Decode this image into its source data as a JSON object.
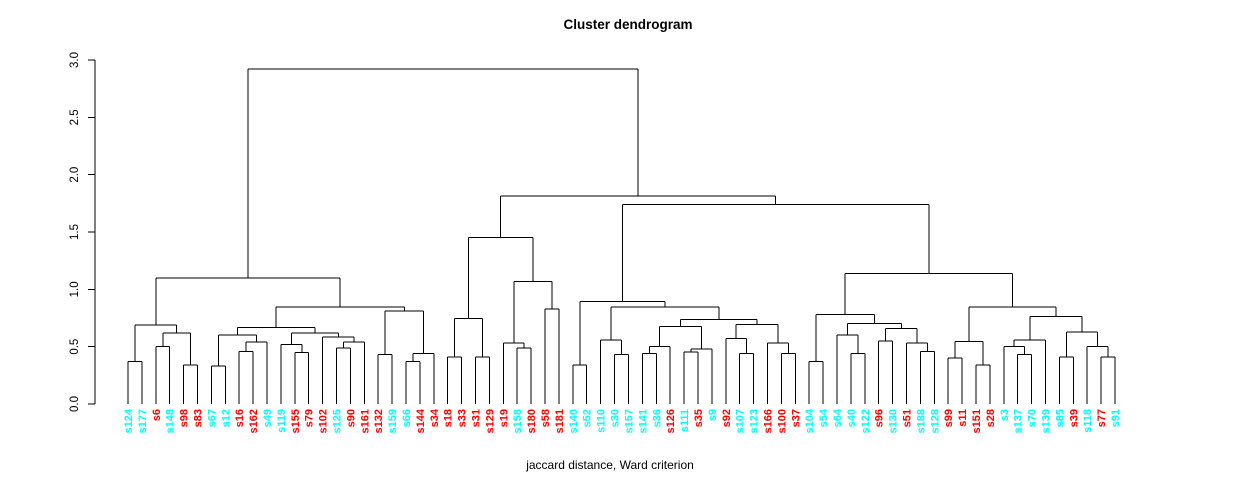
{
  "chart_data": {
    "type": "dendrogram",
    "title": "Cluster dendrogram",
    "xlabel": "jaccard distance, Ward criterion",
    "ylabel": "",
    "ylim": [
      0.0,
      3.0
    ],
    "yticks": [
      "0.0",
      "0.5",
      "1.0",
      "1.5",
      "2.0",
      "2.5",
      "3.0"
    ],
    "grid": false,
    "line_color": "#000000",
    "label_colors": {
      "red": "#FF0000",
      "cyan": "#00FFFF"
    },
    "leaves": [
      {
        "label": "s124",
        "color": "cyan"
      },
      {
        "label": "s177",
        "color": "cyan"
      },
      {
        "label": "s6",
        "color": "red"
      },
      {
        "label": "s148",
        "color": "cyan"
      },
      {
        "label": "s98",
        "color": "red"
      },
      {
        "label": "s83",
        "color": "red"
      },
      {
        "label": "s67",
        "color": "cyan"
      },
      {
        "label": "s12",
        "color": "cyan"
      },
      {
        "label": "s16",
        "color": "red"
      },
      {
        "label": "s162",
        "color": "red"
      },
      {
        "label": "s49",
        "color": "cyan"
      },
      {
        "label": "s119",
        "color": "cyan"
      },
      {
        "label": "s155",
        "color": "red"
      },
      {
        "label": "s79",
        "color": "red"
      },
      {
        "label": "s102",
        "color": "red"
      },
      {
        "label": "s125",
        "color": "cyan"
      },
      {
        "label": "s90",
        "color": "red"
      },
      {
        "label": "s161",
        "color": "red"
      },
      {
        "label": "s132",
        "color": "red"
      },
      {
        "label": "s159",
        "color": "cyan"
      },
      {
        "label": "s66",
        "color": "cyan"
      },
      {
        "label": "s144",
        "color": "red"
      },
      {
        "label": "s34",
        "color": "red"
      },
      {
        "label": "s18",
        "color": "red"
      },
      {
        "label": "s33",
        "color": "red"
      },
      {
        "label": "s31",
        "color": "red"
      },
      {
        "label": "s129",
        "color": "red"
      },
      {
        "label": "s19",
        "color": "red"
      },
      {
        "label": "s158",
        "color": "cyan"
      },
      {
        "label": "s180",
        "color": "red"
      },
      {
        "label": "s58",
        "color": "red"
      },
      {
        "label": "s181",
        "color": "red"
      },
      {
        "label": "s140",
        "color": "cyan"
      },
      {
        "label": "s52",
        "color": "cyan"
      },
      {
        "label": "s110",
        "color": "cyan"
      },
      {
        "label": "s30",
        "color": "cyan"
      },
      {
        "label": "s157",
        "color": "cyan"
      },
      {
        "label": "s141",
        "color": "cyan"
      },
      {
        "label": "s36",
        "color": "cyan"
      },
      {
        "label": "s126",
        "color": "red"
      },
      {
        "label": "s111",
        "color": "cyan"
      },
      {
        "label": "s35",
        "color": "red"
      },
      {
        "label": "s9",
        "color": "cyan"
      },
      {
        "label": "s92",
        "color": "red"
      },
      {
        "label": "s107",
        "color": "cyan"
      },
      {
        "label": "s123",
        "color": "cyan"
      },
      {
        "label": "s166",
        "color": "red"
      },
      {
        "label": "s100",
        "color": "red"
      },
      {
        "label": "s37",
        "color": "red"
      },
      {
        "label": "s104",
        "color": "cyan"
      },
      {
        "label": "s54",
        "color": "cyan"
      },
      {
        "label": "s64",
        "color": "cyan"
      },
      {
        "label": "s40",
        "color": "cyan"
      },
      {
        "label": "s122",
        "color": "cyan"
      },
      {
        "label": "s96",
        "color": "red"
      },
      {
        "label": "s130",
        "color": "cyan"
      },
      {
        "label": "s51",
        "color": "red"
      },
      {
        "label": "s188",
        "color": "cyan"
      },
      {
        "label": "s128",
        "color": "cyan"
      },
      {
        "label": "s99",
        "color": "red"
      },
      {
        "label": "s11",
        "color": "red"
      },
      {
        "label": "s151",
        "color": "red"
      },
      {
        "label": "s28",
        "color": "red"
      },
      {
        "label": "s3",
        "color": "cyan"
      },
      {
        "label": "s137",
        "color": "cyan"
      },
      {
        "label": "s70",
        "color": "cyan"
      },
      {
        "label": "s139",
        "color": "cyan"
      },
      {
        "label": "s85",
        "color": "cyan"
      },
      {
        "label": "s39",
        "color": "red"
      },
      {
        "label": "s118",
        "color": "cyan"
      },
      {
        "label": "s77",
        "color": "red"
      },
      {
        "label": "s91",
        "color": "cyan"
      }
    ],
    "tree": {
      "h": 2.92,
      "c": [
        {
          "h": 1.1,
          "c": [
            {
              "h": 0.69,
              "c": [
                {
                  "h": 0.37,
                  "c": [
                    0,
                    1
                  ]
                },
                {
                  "h": 0.62,
                  "c": [
                    {
                      "h": 0.5,
                      "c": [
                        2,
                        3
                      ]
                    },
                    {
                      "h": 0.34,
                      "c": [
                        4,
                        5
                      ]
                    }
                  ]
                }
              ]
            },
            {
              "h": 0.845,
              "c": [
                {
                  "h": 0.665,
                  "c": [
                    {
                      "h": 0.6,
                      "c": [
                        {
                          "h": 0.33,
                          "c": [
                            6,
                            7
                          ]
                        },
                        {
                          "h": 0.54,
                          "c": [
                            {
                              "h": 0.46,
                              "c": [
                                8,
                                9
                              ]
                            },
                            10
                          ]
                        }
                      ]
                    },
                    {
                      "h": 0.62,
                      "c": [
                        {
                          "h": 0.52,
                          "c": [
                            11,
                            {
                              "h": 0.45,
                              "c": [
                                12,
                                13
                              ]
                            }
                          ]
                        },
                        {
                          "h": 0.585,
                          "c": [
                            14,
                            {
                              "h": 0.54,
                              "c": [
                                {
                                  "h": 0.49,
                                  "c": [
                                    15,
                                    16
                                  ]
                                },
                                17
                              ]
                            }
                          ]
                        }
                      ]
                    }
                  ]
                },
                {
                  "h": 0.81,
                  "c": [
                    {
                      "h": 0.43,
                      "c": [
                        18,
                        19
                      ]
                    },
                    {
                      "h": 0.44,
                      "c": [
                        {
                          "h": 0.37,
                          "c": [
                            20,
                            21
                          ]
                        },
                        22
                      ]
                    }
                  ]
                }
              ]
            }
          ]
        },
        {
          "h": 1.815,
          "c": [
            {
              "h": 1.45,
              "c": [
                {
                  "h": 0.747,
                  "c": [
                    {
                      "h": 0.41,
                      "c": [
                        23,
                        24
                      ]
                    },
                    {
                      "h": 0.41,
                      "c": [
                        25,
                        26
                      ]
                    }
                  ]
                },
                {
                  "h": 1.07,
                  "c": [
                    {
                      "h": 0.53,
                      "c": [
                        27,
                        {
                          "h": 0.49,
                          "c": [
                            28,
                            29
                          ]
                        }
                      ]
                    },
                    {
                      "h": 0.83,
                      "c": [
                        30,
                        31
                      ]
                    }
                  ]
                }
              ]
            },
            {
              "h": 1.74,
              "c": [
                {
                  "h": 0.892,
                  "c": [
                    {
                      "h": 0.34,
                      "c": [
                        32,
                        33
                      ]
                    },
                    {
                      "h": 0.848,
                      "c": [
                        {
                          "h": 0.56,
                          "c": [
                            34,
                            {
                              "h": 0.43,
                              "c": [
                                35,
                                36
                              ]
                            }
                          ]
                        },
                        {
                          "h": 0.738,
                          "c": [
                            {
                              "h": 0.674,
                              "c": [
                                {
                                  "h": 0.5,
                                  "c": [
                                    {
                                      "h": 0.44,
                                      "c": [
                                        37,
                                        38
                                      ]
                                    },
                                    39
                                  ]
                                },
                                {
                                  "h": 0.48,
                                  "c": [
                                    {
                                      "h": 0.455,
                                      "c": [
                                        40,
                                        41
                                      ]
                                    },
                                    42
                                  ]
                                }
                              ]
                            },
                            {
                              "h": 0.695,
                              "c": [
                                {
                                  "h": 0.573,
                                  "c": [
                                    43,
                                    {
                                      "h": 0.44,
                                      "c": [
                                        44,
                                        45
                                      ]
                                    }
                                  ]
                                },
                                {
                                  "h": 0.53,
                                  "c": [
                                    46,
                                    {
                                      "h": 0.44,
                                      "c": [
                                        47,
                                        48
                                      ]
                                    }
                                  ]
                                }
                              ]
                            }
                          ]
                        }
                      ]
                    }
                  ]
                },
                {
                  "h": 1.14,
                  "c": [
                    {
                      "h": 0.782,
                      "c": [
                        {
                          "h": 0.37,
                          "c": [
                            49,
                            50
                          ]
                        },
                        {
                          "h": 0.7,
                          "c": [
                            {
                              "h": 0.6,
                              "c": [
                                51,
                                {
                                  "h": 0.44,
                                  "c": [
                                    52,
                                    53
                                  ]
                                }
                              ]
                            },
                            {
                              "h": 0.66,
                              "c": [
                                {
                                  "h": 0.55,
                                  "c": [
                                    54,
                                    55
                                  ]
                                },
                                {
                                  "h": 0.53,
                                  "c": [
                                    56,
                                    {
                                      "h": 0.46,
                                      "c": [
                                        57,
                                        58
                                      ]
                                    }
                                  ]
                                }
                              ]
                            }
                          ]
                        }
                      ]
                    },
                    {
                      "h": 0.848,
                      "c": [
                        {
                          "h": 0.543,
                          "c": [
                            {
                              "h": 0.4,
                              "c": [
                                59,
                                60
                              ]
                            },
                            {
                              "h": 0.34,
                              "c": [
                                61,
                                62
                              ]
                            }
                          ]
                        },
                        {
                          "h": 0.761,
                          "c": [
                            {
                              "h": 0.56,
                              "c": [
                                {
                                  "h": 0.5,
                                  "c": [
                                    63,
                                    {
                                      "h": 0.43,
                                      "c": [
                                        64,
                                        65
                                      ]
                                    }
                                  ]
                                },
                                66
                              ]
                            },
                            {
                              "h": 0.63,
                              "c": [
                                {
                                  "h": 0.41,
                                  "c": [
                                    67,
                                    68
                                  ]
                                },
                                {
                                  "h": 0.5,
                                  "c": [
                                    69,
                                    {
                                      "h": 0.41,
                                      "c": [
                                        70,
                                        71
                                      ]
                                    }
                                  ]
                                }
                              ]
                            }
                          ]
                        }
                      ]
                    }
                  ]
                }
              ]
            }
          ]
        }
      ]
    }
  }
}
